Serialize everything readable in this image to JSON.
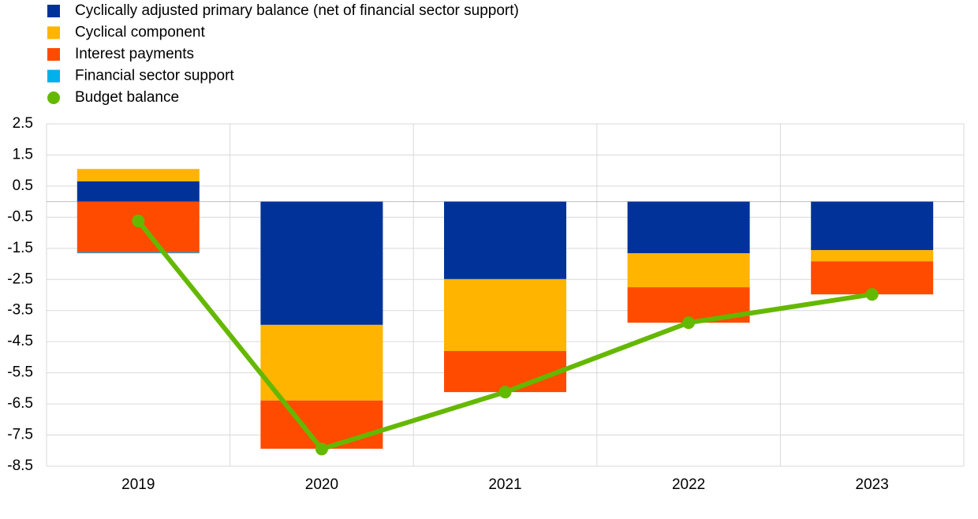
{
  "chart_data": {
    "type": "bar",
    "stacked": true,
    "categories": [
      "2019",
      "2020",
      "2021",
      "2022",
      "2023"
    ],
    "series": [
      {
        "name": "Cyclically adjusted primary balance (net of financial sector support)",
        "color": "#003299",
        "values": [
          0.65,
          -3.96,
          -2.49,
          -1.66,
          -1.56
        ]
      },
      {
        "name": "Cyclical component",
        "color": "#ffb400",
        "values": [
          0.4,
          -2.43,
          -2.31,
          -1.09,
          -0.36
        ]
      },
      {
        "name": "Interest payments",
        "color": "#ff4b00",
        "values": [
          -1.63,
          -1.55,
          -1.32,
          -1.14,
          -1.06
        ]
      },
      {
        "name": "Financial sector support",
        "color": "#00b1ea",
        "values": [
          -0.03,
          0,
          0,
          0,
          0
        ]
      },
      {
        "name": "Budget balance",
        "color": "#65b800",
        "kind": "line",
        "values": [
          -0.62,
          -7.95,
          -6.12,
          -3.89,
          -2.98
        ]
      }
    ],
    "ylim": [
      -8.5,
      2.5
    ],
    "yticks": [
      2.5,
      1.5,
      0.5,
      -0.5,
      -1.5,
      -2.5,
      -3.5,
      -4.5,
      -5.5,
      -6.5,
      -7.5,
      -8.5
    ],
    "grid": true
  }
}
